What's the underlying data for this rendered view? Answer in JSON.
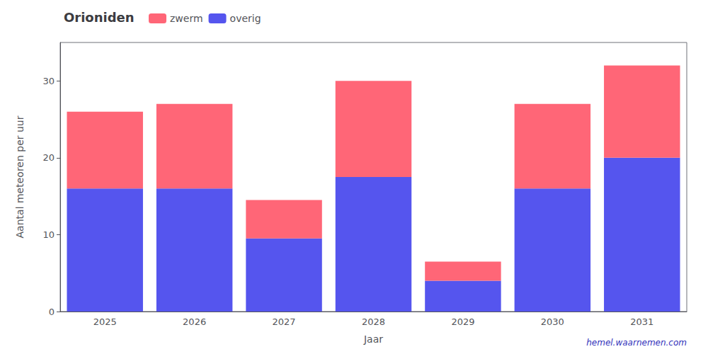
{
  "chart_data": {
    "type": "bar",
    "title": "Orioniden",
    "categories": [
      "2025",
      "2026",
      "2027",
      "2028",
      "2029",
      "2030",
      "2031"
    ],
    "xlabel": "Jaar",
    "ylabel": "Aantal meteoren per uur",
    "series": [
      {
        "name": "overig",
        "color": "#5555EE",
        "values": [
          16,
          16,
          9.5,
          17.5,
          4,
          16,
          20
        ]
      },
      {
        "name": "zwerm",
        "color": "#FF6677",
        "values": [
          10,
          11,
          5,
          12.5,
          2.5,
          11,
          12
        ]
      }
    ],
    "stacked": true,
    "ylim": [
      0,
      35
    ],
    "yticks": [
      0,
      10,
      20,
      30
    ],
    "grid": false,
    "legend": "upper left",
    "annotations": [
      {
        "text": "hemel.waarnemen.com",
        "color": "#3333BB"
      }
    ]
  }
}
